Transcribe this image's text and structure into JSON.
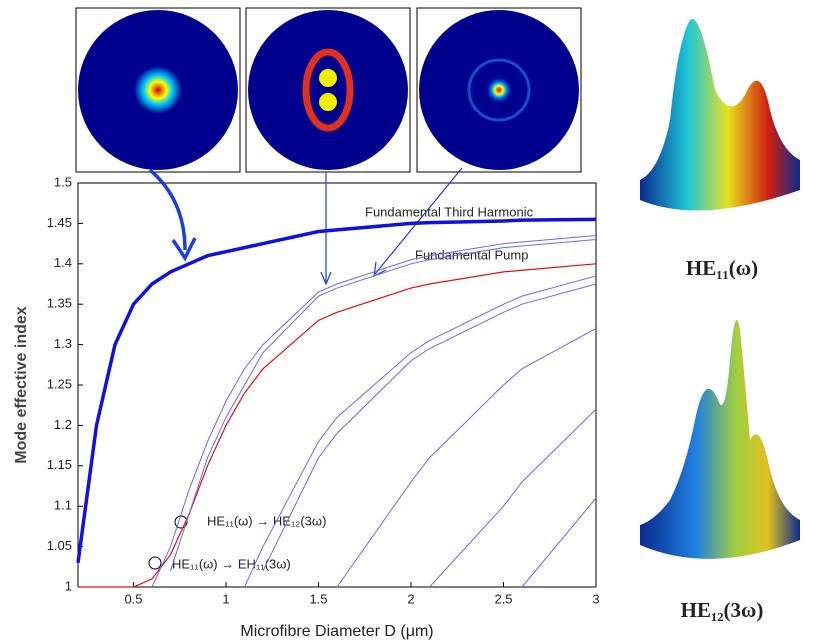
{
  "chart_data": {
    "type": "line",
    "x_label": "Microfibre Diameter D (μm)",
    "y_label": "Mode effective index",
    "x": [
      0.2,
      0.3,
      0.4,
      0.5,
      0.6,
      0.7,
      0.8,
      0.9,
      1.0,
      1.1,
      1.2,
      1.5,
      1.6,
      2.0,
      2.1,
      2.5,
      2.6,
      3.0
    ],
    "series": [
      {
        "color": "#1010e0",
        "width": 3.5,
        "values": [
          1.03,
          1.2,
          1.3,
          1.35,
          1.375,
          1.39,
          1.4,
          1.41,
          1.415,
          1.42,
          1.425,
          1.44,
          1.442,
          1.45,
          1.451,
          1.453,
          1.454,
          1.455
        ]
      },
      {
        "color": "#e01010",
        "width": 1.2,
        "values": [
          1,
          1,
          1,
          1,
          1.01,
          1.04,
          1.09,
          1.15,
          1.2,
          1.24,
          1.27,
          1.33,
          1.34,
          1.37,
          1.375,
          1.39,
          1.392,
          1.4
        ]
      },
      {
        "color": "#6a6af0",
        "width": 1,
        "values": [
          null,
          null,
          null,
          null,
          1.0,
          1.05,
          1.12,
          1.18,
          1.23,
          1.27,
          1.3,
          1.365,
          1.375,
          1.405,
          1.41,
          1.425,
          1.427,
          1.435
        ]
      },
      {
        "color": "#6a6af0",
        "width": 1,
        "values": [
          null,
          null,
          null,
          null,
          null,
          1.02,
          1.09,
          1.16,
          1.21,
          1.25,
          1.29,
          1.36,
          1.37,
          1.4,
          1.405,
          1.42,
          1.422,
          1.43
        ]
      },
      {
        "color": "#6a6af0",
        "width": 1,
        "values": [
          null,
          null,
          null,
          null,
          null,
          null,
          null,
          null,
          null,
          1.0,
          1.05,
          1.18,
          1.21,
          1.29,
          1.305,
          1.35,
          1.36,
          1.385
        ]
      },
      {
        "color": "#6a6af0",
        "width": 1,
        "values": [
          null,
          null,
          null,
          null,
          null,
          null,
          null,
          null,
          null,
          null,
          1.02,
          1.16,
          1.19,
          1.28,
          1.295,
          1.34,
          1.35,
          1.375
        ]
      },
      {
        "color": "#6a6af0",
        "width": 1,
        "values": [
          null,
          null,
          null,
          null,
          null,
          null,
          null,
          null,
          null,
          null,
          null,
          null,
          1.0,
          1.13,
          1.16,
          1.25,
          1.27,
          1.32
        ]
      },
      {
        "color": "#6a6af0",
        "width": 1,
        "values": [
          null,
          null,
          null,
          null,
          null,
          null,
          null,
          null,
          null,
          null,
          null,
          null,
          null,
          null,
          1.0,
          1.1,
          1.13,
          1.22
        ]
      },
      {
        "color": "#6a6af0",
        "width": 1,
        "values": [
          null,
          null,
          null,
          null,
          null,
          null,
          null,
          null,
          null,
          null,
          null,
          null,
          null,
          null,
          null,
          null,
          1.0,
          1.11
        ]
      }
    ],
    "xlim": [
      0.2,
      3
    ],
    "ylim": [
      1,
      1.5
    ],
    "xticks": [
      0.5,
      1,
      1.5,
      2,
      2.5,
      3
    ],
    "yticks": [
      1,
      1.05,
      1.1,
      1.15,
      1.2,
      1.25,
      1.3,
      1.35,
      1.4,
      1.45,
      1.5
    ],
    "annotations": [
      "Fundamental Third Harmonic",
      "Fundamental Pump",
      "HE₁₁(ω) → HE₁₂(3ω)",
      "HE₁₁(ω) → EH₁₁(3ω)",
      "HE₁₁(ω)",
      "HE₁₂(3ω)"
    ]
  }
}
